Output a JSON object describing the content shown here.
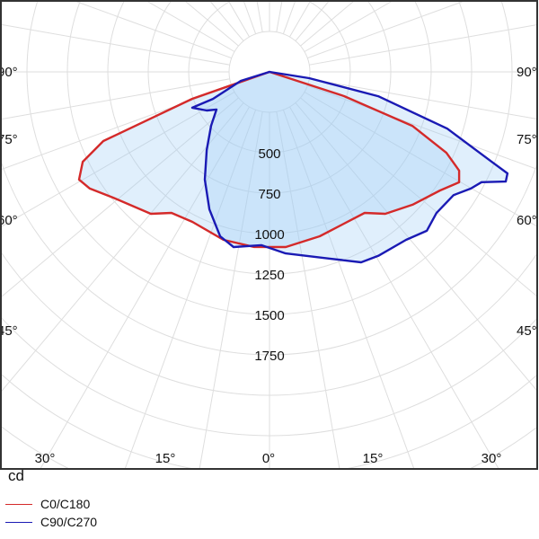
{
  "chart_data": {
    "type": "polar",
    "unit_label": "cd",
    "radial_ticks": [
      500,
      750,
      1000,
      1250,
      1500,
      1750
    ],
    "radial_step": 250,
    "angle_labels_side": [
      "90°",
      "75°",
      "60°",
      "45°"
    ],
    "angle_labels_bottom": [
      "30°",
      "15°",
      "0°",
      "15°",
      "30°"
    ],
    "grid": true,
    "legend_position": "bottom-left",
    "series": [
      {
        "name": "C0/C180",
        "color": "#d42a2a",
        "points": [
          [
            -90,
            0
          ],
          [
            -70.8,
            506
          ],
          [
            -67.4,
            1113
          ],
          [
            -64.3,
            1282
          ],
          [
            -60.5,
            1353
          ],
          [
            -57,
            1325
          ],
          [
            -51.2,
            1241
          ],
          [
            -39.9,
            1144
          ],
          [
            -34.8,
            1062
          ],
          [
            -27.2,
            1043
          ],
          [
            -15.3,
            1077
          ],
          [
            -5,
            1087
          ],
          [
            5.3,
            1088
          ],
          [
            17,
            1063
          ],
          [
            34,
            1052
          ],
          [
            39.2,
            1133
          ],
          [
            47.1,
            1207
          ],
          [
            55.2,
            1285
          ],
          [
            59.8,
            1357
          ],
          [
            62.5,
            1322
          ],
          [
            65.4,
            1203
          ],
          [
            69.3,
            944
          ],
          [
            72,
            485
          ],
          [
            90,
            0
          ]
        ]
      },
      {
        "name": "C90/C270",
        "color": "#1a1ab4",
        "points": [
          [
            -90,
            0
          ],
          [
            -72.6,
            186
          ],
          [
            -64.5,
            388
          ],
          [
            -65.1,
            527
          ],
          [
            -58.4,
            456
          ],
          [
            -54.6,
            402
          ],
          [
            -47.3,
            491
          ],
          [
            -38.8,
            620
          ],
          [
            -31,
            777
          ],
          [
            -23.6,
            928
          ],
          [
            -16.7,
            1062
          ],
          [
            -11.6,
            1106
          ],
          [
            -2.7,
            1073
          ],
          [
            5.1,
            1127
          ],
          [
            17.9,
            1214
          ],
          [
            25.7,
            1307
          ],
          [
            30.6,
            1322
          ],
          [
            39.1,
            1339
          ],
          [
            44.7,
            1383
          ],
          [
            49.8,
            1352
          ],
          [
            56.2,
            1370
          ],
          [
            59.9,
            1439
          ],
          [
            62.5,
            1478
          ],
          [
            65.1,
            1611
          ],
          [
            66.9,
            1600
          ],
          [
            68,
            1480
          ],
          [
            72.3,
            1154
          ],
          [
            77.4,
            689
          ],
          [
            81,
            248
          ],
          [
            90,
            0
          ]
        ]
      }
    ]
  }
}
